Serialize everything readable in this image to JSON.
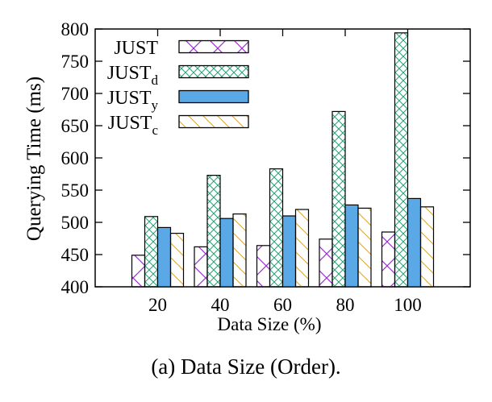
{
  "chart_data": {
    "type": "bar",
    "xlabel": "Data Size (%)",
    "ylabel": "Querying Time (ms)",
    "categories": [
      "20",
      "40",
      "60",
      "80",
      "100"
    ],
    "ylim": [
      400,
      800
    ],
    "yticks": [
      400,
      450,
      500,
      550,
      600,
      650,
      700,
      750,
      800
    ],
    "legend_position": "top-left",
    "series": [
      {
        "name": "JUST",
        "sub": "",
        "values": [
          449,
          462,
          464,
          474,
          485
        ],
        "fill": "#ffffff",
        "hatch": "crossing",
        "hatch_color": "#9b30d0"
      },
      {
        "name": "JUST",
        "sub": "d",
        "values": [
          509,
          573,
          583,
          672,
          794
        ],
        "fill": "#ffffff",
        "hatch": "crosshatch",
        "hatch_color": "#2fa37a"
      },
      {
        "name": "JUST",
        "sub": "y",
        "values": [
          492,
          506,
          510,
          527,
          537
        ],
        "fill": "#5aa9e6",
        "hatch": "none",
        "hatch_color": "#5aa9e6"
      },
      {
        "name": "JUST",
        "sub": "c",
        "values": [
          483,
          513,
          520,
          522,
          524
        ],
        "fill": "#ffffff",
        "hatch": "diagonal",
        "hatch_color": "#d8a83a"
      }
    ]
  },
  "caption": "(a)  Data Size (Order)."
}
